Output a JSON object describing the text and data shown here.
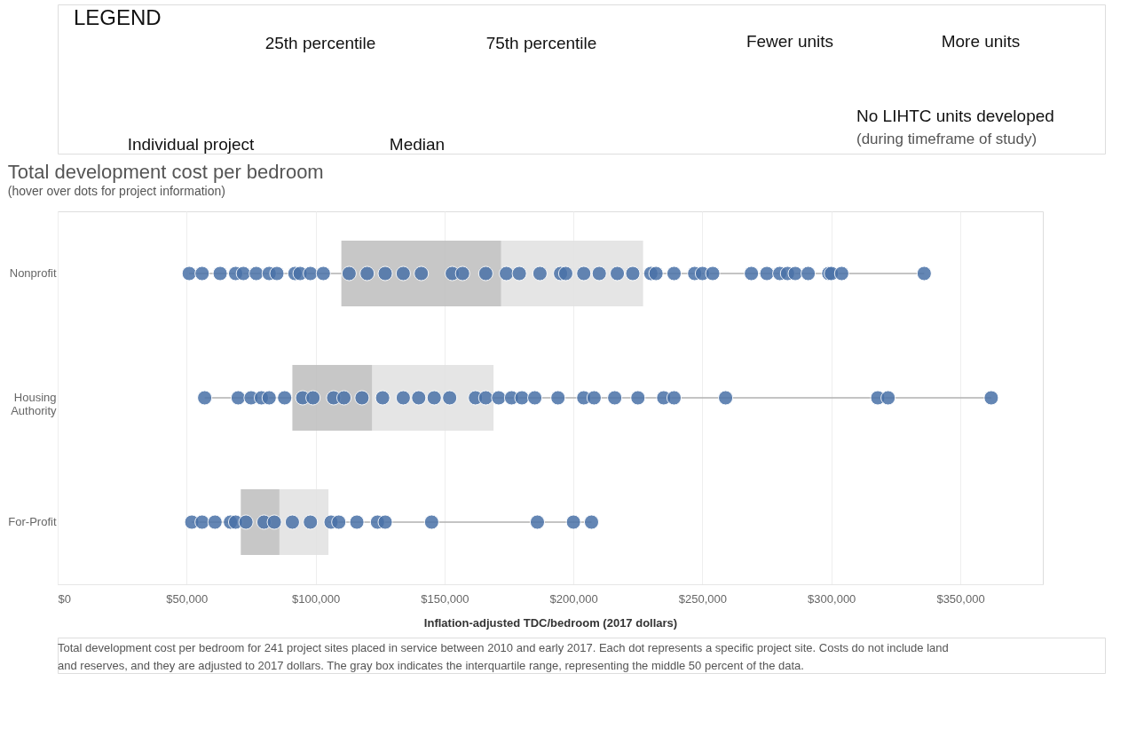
{
  "chart_data": {
    "type": "box",
    "orientation": "horizontal",
    "title": "Total development cost per bedroom",
    "subtitle": "(hover over dots for project information)",
    "xlabel": "Inflation-adjusted TDC/bedroom (2017 dollars)",
    "categories": [
      "Nonprofit",
      "Housing Authority",
      "For-Profit"
    ],
    "series": [
      {
        "color": "#bdbdbd",
        "boxes": [
          {
            "low": 51000,
            "q1": 110000,
            "median": 172000,
            "q3": 227000,
            "high": 336000
          },
          {
            "low": 57000,
            "q1": 91000,
            "median": 122000,
            "q3": 169000,
            "high": 362000
          },
          {
            "low": 52000,
            "q1": 71000,
            "median": 86000,
            "q3": 105000,
            "high": 207000
          }
        ]
      },
      {
        "type": "scatter",
        "color": "#4a72a8",
        "x": [
          "Nonprofit",
          "Nonprofit",
          "Nonprofit",
          "Nonprofit",
          "Nonprofit",
          "Nonprofit",
          "Nonprofit",
          "Nonprofit",
          "Nonprofit",
          "Nonprofit",
          "Nonprofit",
          "Nonprofit",
          "Nonprofit",
          "Nonprofit",
          "Nonprofit",
          "Nonprofit",
          "Nonprofit",
          "Nonprofit",
          "Nonprofit",
          "Nonprofit",
          "Nonprofit",
          "Nonprofit",
          "Nonprofit",
          "Nonprofit",
          "Nonprofit",
          "Nonprofit",
          "Nonprofit",
          "Nonprofit",
          "Nonprofit",
          "Nonprofit",
          "Nonprofit",
          "Nonprofit",
          "Nonprofit",
          "Nonprofit",
          "Nonprofit",
          "Nonprofit",
          "Nonprofit",
          "Nonprofit",
          "Nonprofit",
          "Nonprofit",
          "Nonprofit",
          "Nonprofit",
          "Nonprofit",
          "Nonprofit",
          "Nonprofit",
          "Housing Authority",
          "Housing Authority",
          "Housing Authority",
          "Housing Authority",
          "Housing Authority",
          "Housing Authority",
          "Housing Authority",
          "Housing Authority",
          "Housing Authority",
          "Housing Authority",
          "Housing Authority",
          "Housing Authority",
          "Housing Authority",
          "Housing Authority",
          "Housing Authority",
          "Housing Authority",
          "Housing Authority",
          "Housing Authority",
          "Housing Authority",
          "Housing Authority",
          "Housing Authority",
          "Housing Authority",
          "Housing Authority",
          "Housing Authority",
          "Housing Authority",
          "Housing Authority",
          "Housing Authority",
          "Housing Authority",
          "Housing Authority",
          "Housing Authority",
          "Housing Authority",
          "Housing Authority",
          "Housing Authority",
          "For-Profit",
          "For-Profit",
          "For-Profit",
          "For-Profit",
          "For-Profit",
          "For-Profit",
          "For-Profit",
          "For-Profit",
          "For-Profit",
          "For-Profit",
          "For-Profit",
          "For-Profit",
          "For-Profit",
          "For-Profit",
          "For-Profit",
          "For-Profit",
          "For-Profit",
          "For-Profit",
          "For-Profit"
        ],
        "values": [
          51000,
          56000,
          63000,
          69000,
          72000,
          77000,
          82000,
          85000,
          92000,
          94000,
          98000,
          103000,
          113000,
          120000,
          127000,
          134000,
          141000,
          153000,
          157000,
          166000,
          174000,
          179000,
          187000,
          195000,
          197000,
          204000,
          210000,
          217000,
          223000,
          230000,
          232000,
          239000,
          247000,
          250000,
          254000,
          269000,
          275000,
          280000,
          283000,
          286000,
          291000,
          299000,
          300000,
          304000,
          336000,
          57000,
          70000,
          75000,
          79000,
          82000,
          88000,
          95000,
          99000,
          107000,
          111000,
          118000,
          126000,
          134000,
          140000,
          146000,
          152000,
          162000,
          166000,
          171000,
          176000,
          180000,
          185000,
          194000,
          204000,
          208000,
          216000,
          225000,
          235000,
          239000,
          259000,
          318000,
          322000,
          362000,
          52000,
          56000,
          61000,
          67000,
          69000,
          73000,
          80000,
          84000,
          91000,
          98000,
          106000,
          109000,
          116000,
          124000,
          127000,
          145000,
          186000,
          200000,
          207000
        ]
      }
    ],
    "xlim": [
      0,
      382000
    ],
    "xticks": [
      {
        "value": 0,
        "label": "$0"
      },
      {
        "value": 50000,
        "label": "$50,000"
      },
      {
        "value": 100000,
        "label": "$100,000"
      },
      {
        "value": 150000,
        "label": "$150,000"
      },
      {
        "value": 200000,
        "label": "$200,000"
      },
      {
        "value": 250000,
        "label": "$250,000"
      },
      {
        "value": 300000,
        "label": "$300,000"
      },
      {
        "value": 350000,
        "label": "$350,000"
      }
    ],
    "grid": "x",
    "legend": false,
    "annotations": [
      "LEGEND",
      "25th percentile",
      "75th percentile",
      "Individual project",
      "Median",
      "Fewer units",
      "More units",
      "No LIHTC units developed",
      "(during timeframe of study)",
      "Total development cost per bedroom for 241 project sites placed in service between 2010 and early 2017. Each dot represents a specific project site. Costs do not include land and reserves, and they are adjusted to 2017 dollars. The gray box indicates the interquartile range, representing the middle 50 percent of the data."
    ]
  }
}
